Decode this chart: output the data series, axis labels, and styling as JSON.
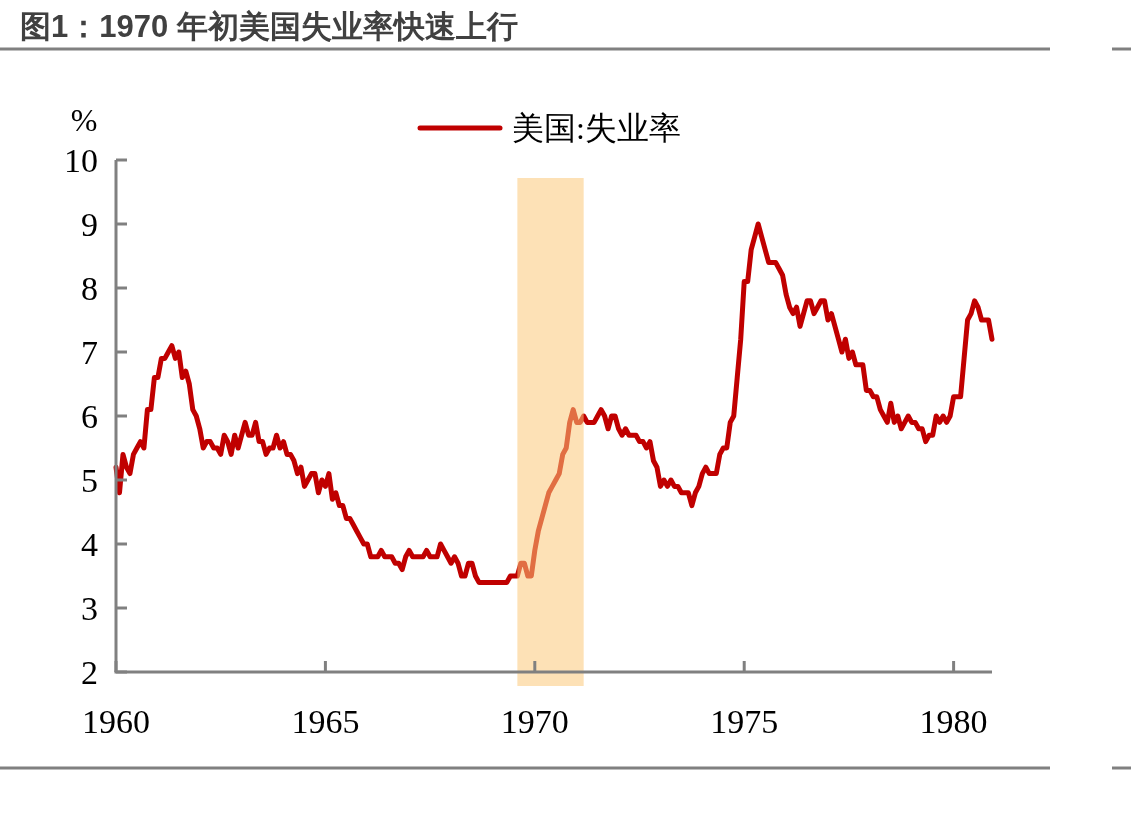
{
  "chart_data": {
    "type": "line",
    "title": "图1：1970 年初美国失业率快速上行",
    "ylabel": "%",
    "legend": "top",
    "line_style": "solid",
    "grid": false,
    "x": [
      "1960-01",
      "1960-02",
      "1960-03",
      "1960-04",
      "1960-05",
      "1960-06",
      "1960-07",
      "1960-08",
      "1960-09",
      "1960-10",
      "1960-11",
      "1960-12",
      "1961-01",
      "1961-02",
      "1961-03",
      "1961-04",
      "1961-05",
      "1961-06",
      "1961-07",
      "1961-08",
      "1961-09",
      "1961-10",
      "1961-11",
      "1961-12",
      "1962-01",
      "1962-02",
      "1962-03",
      "1962-04",
      "1962-05",
      "1962-06",
      "1962-07",
      "1962-08",
      "1962-09",
      "1962-10",
      "1962-11",
      "1962-12",
      "1963-01",
      "1963-02",
      "1963-03",
      "1963-04",
      "1963-05",
      "1963-06",
      "1963-07",
      "1963-08",
      "1963-09",
      "1963-10",
      "1963-11",
      "1963-12",
      "1964-01",
      "1964-02",
      "1964-03",
      "1964-04",
      "1964-05",
      "1964-06",
      "1964-07",
      "1964-08",
      "1964-09",
      "1964-10",
      "1964-11",
      "1964-12",
      "1965-01",
      "1965-02",
      "1965-03",
      "1965-04",
      "1965-05",
      "1965-06",
      "1965-07",
      "1965-08",
      "1965-09",
      "1965-10",
      "1965-11",
      "1965-12",
      "1966-01",
      "1966-02",
      "1966-03",
      "1966-04",
      "1966-05",
      "1966-06",
      "1966-07",
      "1966-08",
      "1966-09",
      "1966-10",
      "1966-11",
      "1966-12",
      "1967-01",
      "1967-02",
      "1967-03",
      "1967-04",
      "1967-05",
      "1967-06",
      "1967-07",
      "1967-08",
      "1967-09",
      "1967-10",
      "1967-11",
      "1967-12",
      "1968-01",
      "1968-02",
      "1968-03",
      "1968-04",
      "1968-05",
      "1968-06",
      "1968-07",
      "1968-08",
      "1968-09",
      "1968-10",
      "1968-11",
      "1968-12",
      "1969-01",
      "1969-02",
      "1969-03",
      "1969-04",
      "1969-05",
      "1969-06",
      "1969-07",
      "1969-08",
      "1969-09",
      "1969-10",
      "1969-11",
      "1969-12",
      "1970-01",
      "1970-02",
      "1970-03",
      "1970-04",
      "1970-05",
      "1970-06",
      "1970-07",
      "1970-08",
      "1970-09",
      "1970-10",
      "1970-11",
      "1970-12",
      "1971-01",
      "1971-02",
      "1971-03",
      "1971-04",
      "1971-05",
      "1971-06",
      "1971-07",
      "1971-08",
      "1971-09",
      "1971-10",
      "1971-11",
      "1971-12",
      "1972-01",
      "1972-02",
      "1972-03",
      "1972-04",
      "1972-05",
      "1972-06",
      "1972-07",
      "1972-08",
      "1972-09",
      "1972-10",
      "1972-11",
      "1972-12",
      "1973-01",
      "1973-02",
      "1973-03",
      "1973-04",
      "1973-05",
      "1973-06",
      "1973-07",
      "1973-08",
      "1973-09",
      "1973-10",
      "1973-11",
      "1973-12",
      "1974-01",
      "1974-02",
      "1974-03",
      "1974-04",
      "1974-05",
      "1974-06",
      "1974-07",
      "1974-08",
      "1974-09",
      "1974-10",
      "1974-11",
      "1974-12",
      "1975-01",
      "1975-02",
      "1975-03",
      "1975-04",
      "1975-05",
      "1975-06",
      "1975-07",
      "1975-08",
      "1975-09",
      "1975-10",
      "1975-11",
      "1975-12",
      "1976-01",
      "1976-02",
      "1976-03",
      "1976-04",
      "1976-05",
      "1976-06",
      "1976-07",
      "1976-08",
      "1976-09",
      "1976-10",
      "1976-11",
      "1976-12",
      "1977-01",
      "1977-02",
      "1977-03",
      "1977-04",
      "1977-05",
      "1977-06",
      "1977-07",
      "1977-08",
      "1977-09",
      "1977-10",
      "1977-11",
      "1977-12",
      "1978-01",
      "1978-02",
      "1978-03",
      "1978-04",
      "1978-05",
      "1978-06",
      "1978-07",
      "1978-08",
      "1978-09",
      "1978-10",
      "1978-11",
      "1978-12",
      "1979-01",
      "1979-02",
      "1979-03",
      "1979-04",
      "1979-05",
      "1979-06",
      "1979-07",
      "1979-08",
      "1979-09",
      "1979-10",
      "1979-11",
      "1979-12",
      "1980-01",
      "1980-02",
      "1980-03",
      "1980-04",
      "1980-05",
      "1980-06",
      "1980-07",
      "1980-08",
      "1980-09",
      "1980-10",
      "1980-11",
      "1980-12"
    ],
    "series": [
      {
        "name": "美国:失业率",
        "color": "#c00000",
        "values": [
          5.2,
          4.8,
          5.4,
          5.2,
          5.1,
          5.4,
          5.5,
          5.6,
          5.5,
          6.1,
          6.1,
          6.6,
          6.6,
          6.9,
          6.9,
          7.0,
          7.1,
          6.9,
          7.0,
          6.6,
          6.7,
          6.5,
          6.1,
          6.0,
          5.8,
          5.5,
          5.6,
          5.6,
          5.5,
          5.5,
          5.4,
          5.7,
          5.6,
          5.4,
          5.7,
          5.5,
          5.7,
          5.9,
          5.7,
          5.7,
          5.9,
          5.6,
          5.6,
          5.4,
          5.5,
          5.5,
          5.7,
          5.5,
          5.6,
          5.4,
          5.4,
          5.3,
          5.1,
          5.2,
          4.9,
          5.0,
          5.1,
          5.1,
          4.8,
          5.0,
          4.9,
          5.1,
          4.7,
          4.8,
          4.6,
          4.6,
          4.4,
          4.4,
          4.3,
          4.2,
          4.1,
          4.0,
          4.0,
          3.8,
          3.8,
          3.8,
          3.9,
          3.8,
          3.8,
          3.8,
          3.7,
          3.7,
          3.6,
          3.8,
          3.9,
          3.8,
          3.8,
          3.8,
          3.8,
          3.9,
          3.8,
          3.8,
          3.8,
          4.0,
          3.9,
          3.8,
          3.7,
          3.8,
          3.7,
          3.5,
          3.5,
          3.7,
          3.7,
          3.5,
          3.4,
          3.4,
          3.4,
          3.4,
          3.4,
          3.4,
          3.4,
          3.4,
          3.4,
          3.5,
          3.5,
          3.5,
          3.7,
          3.7,
          3.5,
          3.5,
          3.9,
          4.2,
          4.4,
          4.6,
          4.8,
          4.9,
          5.0,
          5.1,
          5.4,
          5.5,
          5.9,
          6.1,
          5.9,
          5.9,
          6.0,
          5.9,
          5.9,
          5.9,
          6.0,
          6.1,
          6.0,
          5.8,
          6.0,
          6.0,
          5.8,
          5.7,
          5.8,
          5.7,
          5.7,
          5.7,
          5.6,
          5.6,
          5.5,
          5.6,
          5.3,
          5.2,
          4.9,
          5.0,
          4.9,
          5.0,
          4.9,
          4.9,
          4.8,
          4.8,
          4.8,
          4.6,
          4.8,
          4.9,
          5.1,
          5.2,
          5.1,
          5.1,
          5.1,
          5.4,
          5.5,
          5.5,
          5.9,
          6.0,
          6.6,
          7.2,
          8.1,
          8.1,
          8.6,
          8.8,
          9.0,
          8.8,
          8.6,
          8.4,
          8.4,
          8.4,
          8.3,
          8.2,
          7.9,
          7.7,
          7.6,
          7.7,
          7.4,
          7.6,
          7.8,
          7.8,
          7.6,
          7.7,
          7.8,
          7.8,
          7.5,
          7.6,
          7.4,
          7.2,
          7.0,
          7.2,
          6.9,
          7.0,
          6.8,
          6.8,
          6.8,
          6.4,
          6.4,
          6.3,
          6.3,
          6.1,
          6.0,
          5.9,
          6.2,
          5.9,
          6.0,
          5.8,
          5.9,
          6.0,
          5.9,
          5.9,
          5.8,
          5.8,
          5.6,
          5.7,
          5.7,
          6.0,
          5.9,
          6.0,
          5.9,
          6.0,
          6.3,
          6.3,
          6.3,
          6.9,
          7.5,
          7.6,
          7.8,
          7.7,
          7.5,
          7.5,
          7.5,
          7.2
        ]
      }
    ],
    "xlim": [
      "1960-01",
      "1980-12"
    ],
    "xticks": [
      "1960",
      "1965",
      "1970",
      "1975",
      "1980"
    ],
    "ylim": [
      2,
      10
    ],
    "yticks": [
      2,
      3,
      4,
      5,
      6,
      7,
      8,
      9,
      10
    ],
    "bands": [
      {
        "axis": "x",
        "from": "1969-08",
        "to": "1971-03",
        "color": "#fbc97a"
      }
    ]
  }
}
